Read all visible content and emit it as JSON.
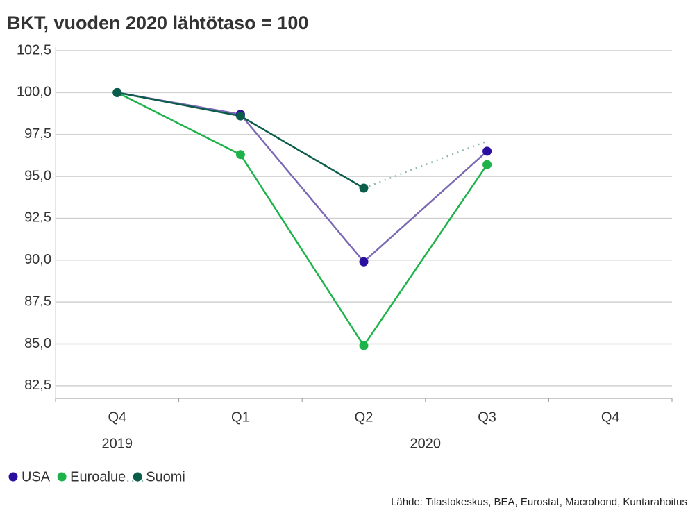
{
  "chart_data": {
    "type": "line",
    "title": "BKT, vuoden 2020 lähtötaso = 100",
    "source": "Lähde: Tilastokeskus, BEA, Eurostat, Macrobond, Kuntarahoitus",
    "categories": [
      "Q4",
      "Q1",
      "Q2",
      "Q3",
      "Q4"
    ],
    "year_groups": [
      {
        "label": "2019",
        "start": 0,
        "end": 0
      },
      {
        "label": "2020",
        "start": 1,
        "end": 4
      }
    ],
    "series": [
      {
        "name": "USA",
        "color": "#2a0fa0",
        "line_color": "#7b68b5",
        "values": [
          100,
          98.7,
          89.9,
          96.5,
          null
        ]
      },
      {
        "name": "Euroalue",
        "color": "#1db34a",
        "line_color": "#1db34a",
        "values": [
          100,
          96.3,
          84.9,
          95.7,
          null
        ]
      },
      {
        "name": "Suomi",
        "color": "#0b5c4a",
        "line_color": "#0b5c4a",
        "values": [
          100,
          98.6,
          94.3,
          97.1,
          null
        ],
        "dotted_from_index": 2,
        "dotted_color": "#8fb8b0"
      }
    ],
    "ylim": [
      81.75,
      102.5
    ],
    "yticks": [
      {
        "value": 82.5,
        "label": "82,5"
      },
      {
        "value": 85,
        "label": "85,0"
      },
      {
        "value": 87.5,
        "label": "87,5"
      },
      {
        "value": 90,
        "label": "90,0"
      },
      {
        "value": 92.5,
        "label": "92,5"
      },
      {
        "value": 95,
        "label": "95,0"
      },
      {
        "value": 97.5,
        "label": "97,5"
      },
      {
        "value": 100,
        "label": "100,0"
      },
      {
        "value": 102.5,
        "label": "102,5"
      }
    ],
    "grid": true,
    "legend": "bottom-left"
  }
}
